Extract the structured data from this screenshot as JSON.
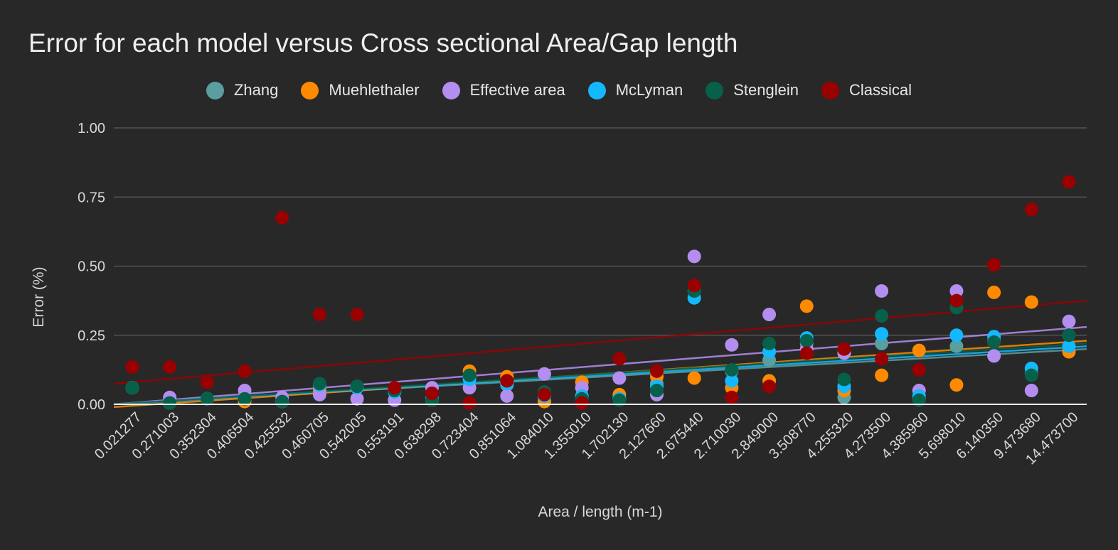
{
  "chart_data": {
    "type": "scatter",
    "title": "Error for each model versus Cross sectional Area/Gap length",
    "xlabel": "Area / length (m-1)",
    "ylabel": "Error (%)",
    "ylim": [
      0,
      1
    ],
    "yticks": [
      "0.00",
      "0.25",
      "0.50",
      "0.75",
      "1.00"
    ],
    "grid": true,
    "legend_position": "top",
    "categories": [
      "0.021277",
      "0.271003",
      "0.352304",
      "0.406504",
      "0.425532",
      "0.460705",
      "0.542005",
      "0.553191",
      "0.638298",
      "0.723404",
      "0.851064",
      "1.084010",
      "1.355010",
      "1.702130",
      "2.127660",
      "2.675440",
      "2.710030",
      "2.849000",
      "3.508770",
      "4.255320",
      "4.273500",
      "4.385960",
      "5.698010",
      "6.140350",
      "9.473680",
      "14.473700"
    ],
    "series": [
      {
        "name": "Zhang",
        "color": "#5a9ea0",
        "values": [
          0.06,
          0.005,
          0.02,
          0.015,
          0.01,
          0.07,
          0.065,
          0.055,
          0.02,
          0.1,
          0.07,
          0.03,
          0.03,
          0.02,
          0.075,
          0.41,
          0.12,
          0.16,
          0.22,
          0.025,
          0.22,
          0.02,
          0.21,
          0.23,
          0.11,
          0.25
        ]
      },
      {
        "name": "Muehlethaler",
        "color": "#ff8a00",
        "values": [
          0.06,
          0.005,
          0.02,
          0.01,
          0.01,
          0.05,
          0.06,
          0.045,
          0.015,
          0.12,
          0.1,
          0.01,
          0.08,
          0.035,
          0.1,
          0.095,
          0.06,
          0.085,
          0.355,
          0.05,
          0.105,
          0.195,
          0.07,
          0.405,
          0.37,
          0.19
        ]
      },
      {
        "name": "Effective area",
        "color": "#b38ef0",
        "values": [
          0.06,
          0.025,
          0.02,
          0.05,
          0.025,
          0.035,
          0.02,
          0.015,
          0.06,
          0.06,
          0.03,
          0.11,
          0.06,
          0.095,
          0.035,
          0.535,
          0.215,
          0.325,
          0.2,
          0.185,
          0.41,
          0.05,
          0.41,
          0.175,
          0.05,
          0.3
        ]
      },
      {
        "name": "McLyman",
        "color": "#13b8ff",
        "values": [
          0.06,
          0.005,
          0.02,
          0.02,
          0.01,
          0.07,
          0.06,
          0.045,
          0.02,
          0.09,
          0.075,
          0.03,
          0.03,
          0.02,
          0.065,
          0.385,
          0.085,
          0.19,
          0.24,
          0.065,
          0.255,
          0.03,
          0.25,
          0.245,
          0.13,
          0.21
        ]
      },
      {
        "name": "Stenglein",
        "color": "#06604a",
        "values": [
          0.06,
          0.005,
          0.02,
          0.02,
          0.01,
          0.075,
          0.065,
          0.05,
          0.015,
          0.105,
          0.085,
          0.045,
          0.02,
          0.015,
          0.05,
          0.41,
          0.125,
          0.22,
          0.23,
          0.09,
          0.32,
          0.015,
          0.35,
          0.225,
          0.105,
          0.25
        ]
      },
      {
        "name": "Classical",
        "color": "#9a0000",
        "values": [
          0.135,
          0.135,
          0.08,
          0.12,
          0.675,
          0.325,
          0.325,
          0.06,
          0.04,
          0.005,
          0.085,
          0.035,
          0.005,
          0.165,
          0.12,
          0.43,
          0.025,
          0.065,
          0.185,
          0.2,
          0.165,
          0.125,
          0.375,
          0.505,
          0.705,
          0.805
        ]
      }
    ],
    "trendlines": [
      {
        "series": "Zhang",
        "start": 0.0,
        "end": 0.2
      },
      {
        "series": "Muehlethaler",
        "start": -0.01,
        "end": 0.23
      },
      {
        "series": "Effective area",
        "start": 0.0,
        "end": 0.28
      },
      {
        "series": "McLyman",
        "start": 0.0,
        "end": 0.21
      },
      {
        "series": "Stenglein",
        "start": 0.0,
        "end": 0.22
      },
      {
        "series": "Classical",
        "start": 0.075,
        "end": 0.375
      }
    ]
  }
}
